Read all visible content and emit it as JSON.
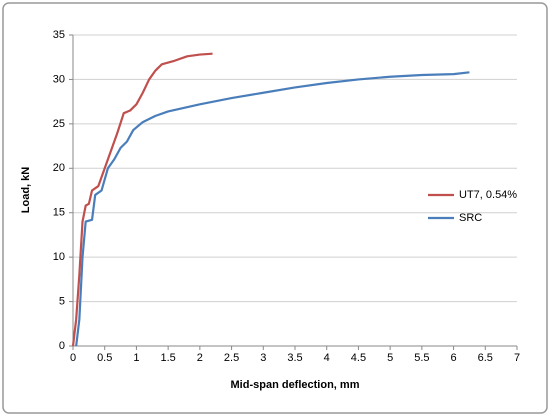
{
  "chart_data": {
    "type": "line",
    "x_label": "Mid-span deflection, mm",
    "y_label": "Load, kN",
    "xlim": [
      0,
      7
    ],
    "xticks": [
      0,
      0.5,
      1,
      1.5,
      2,
      2.5,
      3,
      3.5,
      4,
      4.5,
      5,
      5.5,
      6,
      6.5,
      7
    ],
    "ylim": [
      0,
      35
    ],
    "yticks": [
      0,
      5,
      10,
      15,
      20,
      25,
      30,
      35
    ],
    "grid": true,
    "legend": "right",
    "series": [
      {
        "name": "UT7, 0.54%",
        "color": "#c0504d",
        "x": [
          0,
          0.05,
          0.1,
          0.15,
          0.2,
          0.25,
          0.3,
          0.4,
          0.5,
          0.6,
          0.7,
          0.8,
          0.9,
          1.0,
          1.1,
          1.2,
          1.3,
          1.4,
          1.6,
          1.8,
          2.0,
          2.2
        ],
        "values": [
          0,
          3,
          8,
          14,
          15.8,
          16,
          17.5,
          18,
          20,
          22,
          24,
          26.2,
          26.5,
          27.2,
          28.5,
          30,
          31,
          31.7,
          32.1,
          32.6,
          32.8,
          32.9
        ]
      },
      {
        "name": "SRC",
        "color": "#4a7ebb",
        "x": [
          0.05,
          0.1,
          0.15,
          0.2,
          0.3,
          0.35,
          0.45,
          0.55,
          0.65,
          0.75,
          0.85,
          0.95,
          1.1,
          1.3,
          1.5,
          2,
          2.5,
          3,
          3.5,
          4,
          4.5,
          5,
          5.5,
          6,
          6.25
        ],
        "values": [
          0,
          3,
          10,
          14,
          14.2,
          17,
          17.5,
          20,
          21,
          22.3,
          23,
          24.3,
          25.2,
          25.9,
          26.4,
          27.2,
          27.9,
          28.5,
          29.1,
          29.6,
          30,
          30.3,
          30.5,
          30.6,
          30.8
        ]
      }
    ]
  }
}
